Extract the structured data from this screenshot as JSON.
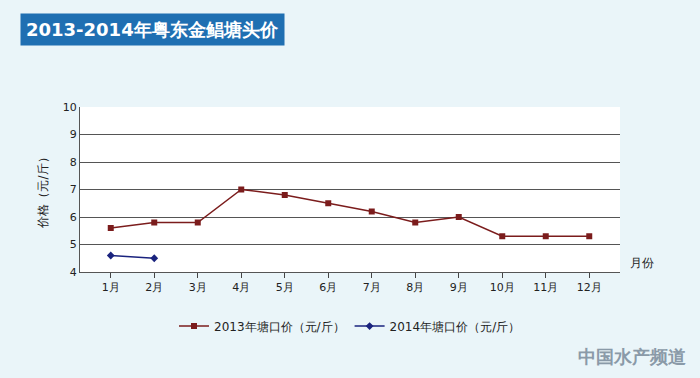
{
  "chart_data": {
    "type": "line",
    "title": "2013-2014年粤东金鲳塘头价",
    "xlabel": "月份",
    "ylabel": "价格（元/斤）",
    "categories": [
      "1月",
      "2月",
      "3月",
      "4月",
      "5月",
      "6月",
      "7月",
      "8月",
      "9月",
      "10月",
      "11月",
      "12月"
    ],
    "series": [
      {
        "name": "2013年塘口价（元/斤）",
        "color": "#7b1c1c",
        "marker": "square",
        "values": [
          5.6,
          5.8,
          5.8,
          7.0,
          6.8,
          6.5,
          6.2,
          5.8,
          6.0,
          5.3,
          5.3,
          5.3
        ]
      },
      {
        "name": "2014年塘口价（元/斤）",
        "color": "#1a237e",
        "marker": "diamond",
        "values": [
          4.6,
          4.5,
          null,
          null,
          null,
          null,
          null,
          null,
          null,
          null,
          null,
          null
        ]
      }
    ],
    "ylim": [
      4,
      10
    ],
    "yticks": [
      4,
      5,
      6,
      7,
      8,
      9,
      10
    ],
    "grid": true,
    "legend": "bottom",
    "annotations": [
      "中国水产频道"
    ]
  }
}
